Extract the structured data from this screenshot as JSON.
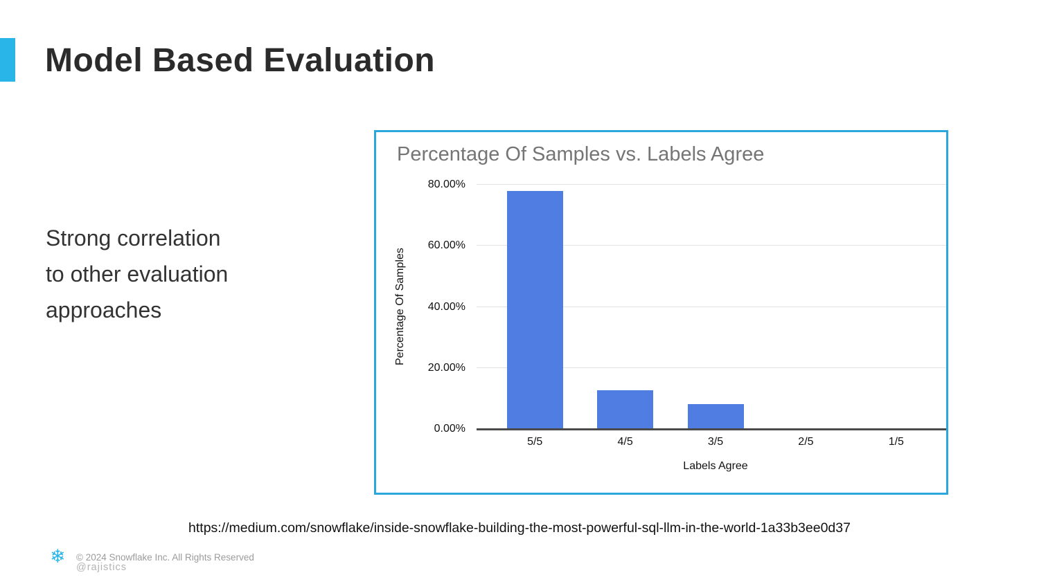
{
  "slide": {
    "title": "Model Based Evaluation",
    "accent_color": "#29B5E8",
    "body_lines": {
      "0": "Strong correlation",
      "1": "to other evaluation",
      "2": "approaches"
    },
    "source_url": "https://medium.com/snowflake/inside-snowflake-building-the-most-powerful-sql-llm-in-the-world-1a33b3ee0d37",
    "footer": {
      "logo_icon": "snowflake-logo-icon",
      "logo_glyph": "❄",
      "copyright": "© 2024 Snowflake Inc. All Rights Reserved",
      "handle": "@rajistics"
    }
  },
  "chart_data": {
    "type": "bar",
    "title": "Percentage Of Samples vs. Labels Agree",
    "xlabel": "Labels Agree",
    "ylabel": "Percentage Of Samples",
    "categories": [
      "5/5",
      "4/5",
      "3/5",
      "2/5",
      "1/5"
    ],
    "values": [
      78,
      12.7,
      8.2,
      0,
      0
    ],
    "ylim": [
      0,
      80
    ],
    "ytick_values": [
      80,
      60,
      40,
      20,
      0
    ],
    "yticks": [
      "80.00%",
      "60.00%",
      "40.00%",
      "20.00%",
      "0.00%"
    ],
    "grid": true,
    "legend": "none",
    "bar_color": "#4F7DE2",
    "panel_border_color": "#2BA7DB",
    "title_color": "#757575"
  }
}
